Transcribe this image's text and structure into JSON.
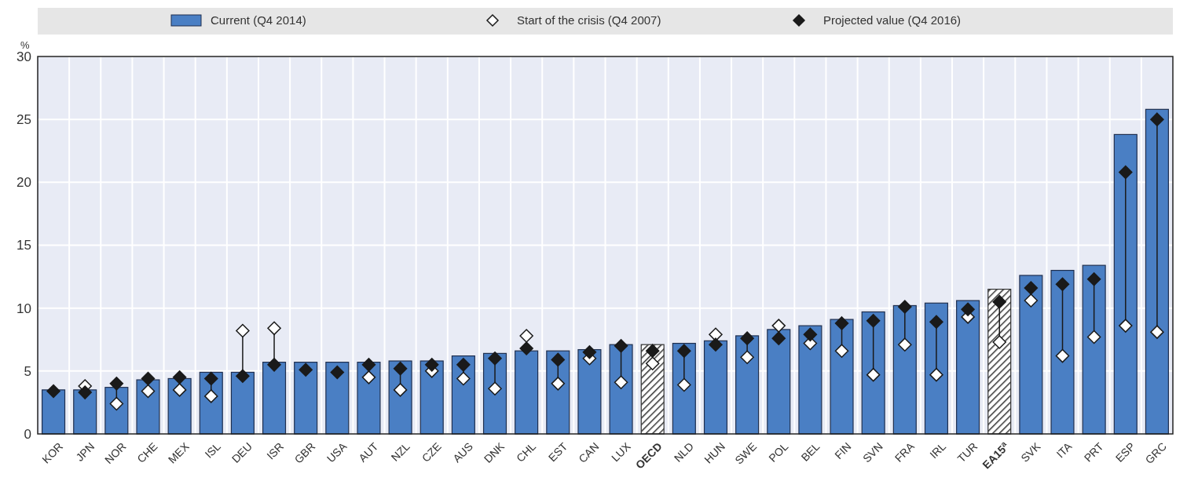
{
  "chart_data": {
    "type": "bar",
    "ylabel": "%",
    "categories": [
      "KOR",
      "JPN",
      "NOR",
      "CHE",
      "MEX",
      "ISL",
      "DEU",
      "ISR",
      "GBR",
      "USA",
      "AUT",
      "NZL",
      "CZE",
      "AUS",
      "DNK",
      "CHL",
      "EST",
      "CAN",
      "LUX",
      "OECD",
      "NLD",
      "HUN",
      "SWE",
      "POL",
      "BEL",
      "FIN",
      "SVN",
      "FRA",
      "IRL",
      "TUR",
      "EA15$^{a}$",
      "SVK",
      "ITA",
      "PRT",
      "ESP",
      "GRC"
    ],
    "series": [
      {
        "name": "Current (Q4 2014)",
        "color": "#4a7fc4",
        "colors": [
          "#4a7fc4",
          "#4a7fc4",
          "#4a7fc4",
          "#4a7fc4",
          "#4a7fc4",
          "#4a7fc4",
          "#4a7fc4",
          "#4a7fc4",
          "#4a7fc4",
          "#4a7fc4",
          "#4a7fc4",
          "#4a7fc4",
          "#4a7fc4",
          "#4a7fc4",
          "#4a7fc4",
          "#4a7fc4",
          "#4a7fc4",
          "#4a7fc4",
          "#4a7fc4",
          "#333333",
          "#4a7fc4",
          "#4a7fc4",
          "#4a7fc4",
          "#4a7fc4",
          "#4a7fc4",
          "#4a7fc4",
          "#4a7fc4",
          "#4a7fc4",
          "#4a7fc4",
          "#4a7fc4",
          "#333333",
          "#4a7fc4",
          "#4a7fc4",
          "#4a7fc4",
          "#4a7fc4",
          "#4a7fc4"
        ],
        "values": [
          3.5,
          3.5,
          3.7,
          4.3,
          4.4,
          4.9,
          4.9,
          5.7,
          5.7,
          5.7,
          5.7,
          5.8,
          5.8,
          6.2,
          6.4,
          6.6,
          6.6,
          6.7,
          7.1,
          7.1,
          7.2,
          7.4,
          7.8,
          8.3,
          8.6,
          9.1,
          9.7,
          10.2,
          10.4,
          10.6,
          11.5,
          12.6,
          13.0,
          13.4,
          23.8,
          25.8
        ]
      },
      {
        "name": "Start of the crisis (Q4 2007)",
        "type": "scatter",
        "color": "#ffffff",
        "values": [
          null,
          3.8,
          2.4,
          3.4,
          3.5,
          3.0,
          8.2,
          8.4,
          null,
          null,
          4.5,
          3.5,
          5.0,
          4.4,
          3.6,
          7.8,
          4.0,
          6.0,
          4.1,
          5.6,
          3.9,
          7.9,
          6.1,
          8.6,
          7.2,
          6.6,
          4.7,
          7.1,
          4.7,
          9.3,
          7.3,
          10.6,
          6.2,
          7.7,
          8.6,
          8.1
        ]
      },
      {
        "name": "Projected value (Q4 2016)",
        "type": "scatter",
        "color": "#1a1a1a",
        "values": [
          3.4,
          3.3,
          4.0,
          4.4,
          4.5,
          4.4,
          4.6,
          5.5,
          5.1,
          4.9,
          5.5,
          5.2,
          5.5,
          5.5,
          6.0,
          6.8,
          5.9,
          6.5,
          7.0,
          6.6,
          6.6,
          7.1,
          7.6,
          7.6,
          7.9,
          8.8,
          9.0,
          10.1,
          8.9,
          9.9,
          10.5,
          11.6,
          11.9,
          12.3,
          20.8,
          25.0
        ]
      }
    ],
    "ylim": [
      0,
      30
    ],
    "yticks": [
      0,
      5,
      10,
      15,
      20,
      25,
      30
    ],
    "grid": true,
    "legend": "top",
    "marker": "diamond"
  }
}
